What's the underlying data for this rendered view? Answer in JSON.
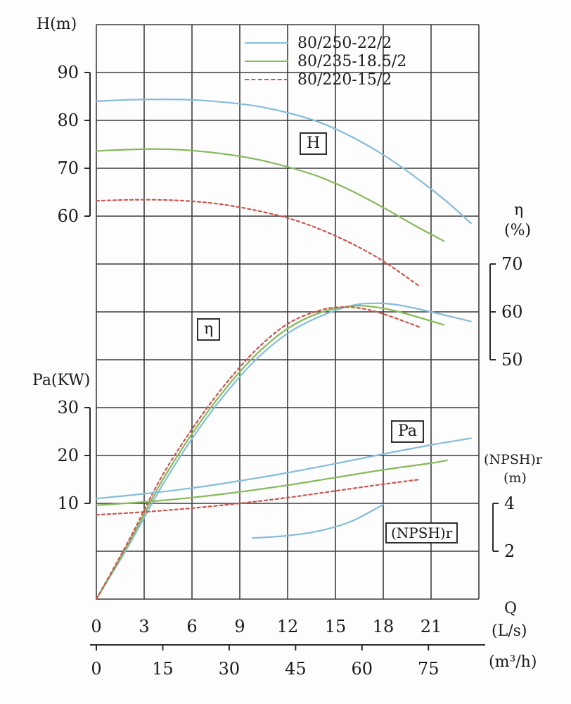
{
  "chart_data": {
    "type": "line",
    "description": "Centrifugal pump performance curves: head H, efficiency eta, shaft power Pa and (NPSH)r versus flow rate Q for three pump models",
    "legend": [
      {
        "label": "80/250-22/2",
        "color": "#85bcd9",
        "dash": false
      },
      {
        "label": "80/235-18.5/2",
        "color": "#87b95b",
        "dash": false
      },
      {
        "label": "80/220-15/2",
        "color": "#cb544d",
        "dash": true
      }
    ],
    "axes": {
      "x_ls": {
        "name": "Q",
        "unit": "(L/s)",
        "ticks": [
          0,
          3,
          6,
          9,
          12,
          15,
          18,
          21
        ],
        "range": [
          0,
          24
        ]
      },
      "x_m3h": {
        "unit": "(m³/h)",
        "ticks": [
          0,
          15,
          30,
          45,
          60,
          75
        ],
        "range": [
          0,
          86.4
        ]
      },
      "H": {
        "name": "H(m)",
        "ticks": [
          90,
          80,
          70,
          60
        ]
      },
      "Pa": {
        "name": "Pa(KW)",
        "ticks": [
          30,
          20,
          10
        ]
      },
      "eta": {
        "name": "η",
        "unit": "(%)",
        "ticks": [
          70,
          60,
          50
        ]
      },
      "npsh": {
        "name": "(NPSH)r",
        "unit": "(m)",
        "ticks": [
          4,
          2
        ]
      }
    },
    "curve_labels": {
      "H": "H",
      "eta": "η",
      "Pa": "Pa",
      "npsh": "(NPSH)r"
    },
    "series": [
      {
        "name": "head-80-250",
        "axis": "H",
        "pump": 0,
        "points": [
          [
            0,
            84
          ],
          [
            2,
            84.3
          ],
          [
            4,
            84.4
          ],
          [
            6,
            84.3
          ],
          [
            8,
            83.8
          ],
          [
            10,
            83
          ],
          [
            12,
            81.6
          ],
          [
            14,
            79.6
          ],
          [
            16,
            76.6
          ],
          [
            18,
            72.8
          ],
          [
            20,
            68.2
          ],
          [
            22,
            63
          ],
          [
            23.5,
            58.5
          ]
        ]
      },
      {
        "name": "head-80-235",
        "axis": "H",
        "pump": 1,
        "points": [
          [
            0,
            73.6
          ],
          [
            2,
            73.9
          ],
          [
            4,
            74
          ],
          [
            6,
            73.7
          ],
          [
            8,
            73
          ],
          [
            10,
            71.9
          ],
          [
            12,
            70.3
          ],
          [
            14,
            68.2
          ],
          [
            16,
            65.3
          ],
          [
            18,
            61.8
          ],
          [
            20,
            58
          ],
          [
            21.8,
            54.8
          ]
        ]
      },
      {
        "name": "head-80-220",
        "axis": "H",
        "pump": 2,
        "points": [
          [
            0,
            63.2
          ],
          [
            2,
            63.4
          ],
          [
            4,
            63.4
          ],
          [
            6,
            63.1
          ],
          [
            8,
            62.4
          ],
          [
            10,
            61.2
          ],
          [
            12,
            59.6
          ],
          [
            14,
            57.3
          ],
          [
            16,
            54.3
          ],
          [
            18,
            50.6
          ],
          [
            20.3,
            45.3
          ]
        ]
      },
      {
        "name": "efficiency-80-250",
        "axis": "eta",
        "pump": 0,
        "points": [
          [
            0,
            0
          ],
          [
            2,
            11
          ],
          [
            4,
            23
          ],
          [
            6,
            33.5
          ],
          [
            8,
            42.5
          ],
          [
            10,
            50
          ],
          [
            12,
            55.5
          ],
          [
            14,
            59
          ],
          [
            16,
            61.3
          ],
          [
            17.5,
            61.8
          ],
          [
            19,
            61.4
          ],
          [
            21,
            60
          ],
          [
            23.5,
            58
          ]
        ]
      },
      {
        "name": "efficiency-80-235",
        "axis": "eta",
        "pump": 1,
        "points": [
          [
            0,
            0
          ],
          [
            2,
            11.5
          ],
          [
            4,
            24
          ],
          [
            6,
            34.5
          ],
          [
            8,
            43.5
          ],
          [
            10,
            51
          ],
          [
            12,
            56.5
          ],
          [
            14,
            59.8
          ],
          [
            16,
            61.2
          ],
          [
            17.5,
            61
          ],
          [
            19,
            60
          ],
          [
            21.8,
            57.3
          ]
        ]
      },
      {
        "name": "efficiency-80-220",
        "axis": "eta",
        "pump": 2,
        "points": [
          [
            0,
            0
          ],
          [
            2,
            12
          ],
          [
            4,
            25
          ],
          [
            6,
            35.5
          ],
          [
            8,
            44.5
          ],
          [
            10,
            52
          ],
          [
            12,
            57.5
          ],
          [
            14,
            60.3
          ],
          [
            15.5,
            61
          ],
          [
            17,
            60.5
          ],
          [
            18.5,
            59
          ],
          [
            20.3,
            56.8
          ]
        ]
      },
      {
        "name": "power-80-250",
        "axis": "Pa",
        "pump": 0,
        "points": [
          [
            0,
            11
          ],
          [
            3,
            12
          ],
          [
            6,
            13.2
          ],
          [
            9,
            14.7
          ],
          [
            12,
            16.4
          ],
          [
            15,
            18.3
          ],
          [
            18,
            20.3
          ],
          [
            21,
            22.2
          ],
          [
            23.5,
            23.6
          ]
        ]
      },
      {
        "name": "power-80-235",
        "axis": "Pa",
        "pump": 1,
        "points": [
          [
            0,
            9.6
          ],
          [
            3,
            10.3
          ],
          [
            6,
            11.2
          ],
          [
            9,
            12.4
          ],
          [
            12,
            13.8
          ],
          [
            15,
            15.4
          ],
          [
            18,
            17
          ],
          [
            21,
            18.4
          ],
          [
            22,
            19
          ]
        ]
      },
      {
        "name": "power-80-220",
        "axis": "Pa",
        "pump": 2,
        "points": [
          [
            0,
            7.6
          ],
          [
            3,
            8.2
          ],
          [
            6,
            9
          ],
          [
            9,
            10
          ],
          [
            12,
            11.2
          ],
          [
            15,
            12.6
          ],
          [
            18,
            14
          ],
          [
            20.3,
            15
          ]
        ]
      },
      {
        "name": "npshr-80-250",
        "axis": "npsh",
        "pump": 0,
        "points": [
          [
            9.8,
            2.55
          ],
          [
            12,
            2.65
          ],
          [
            14,
            2.85
          ],
          [
            16,
            3.25
          ],
          [
            18,
            3.95
          ]
        ]
      }
    ]
  }
}
